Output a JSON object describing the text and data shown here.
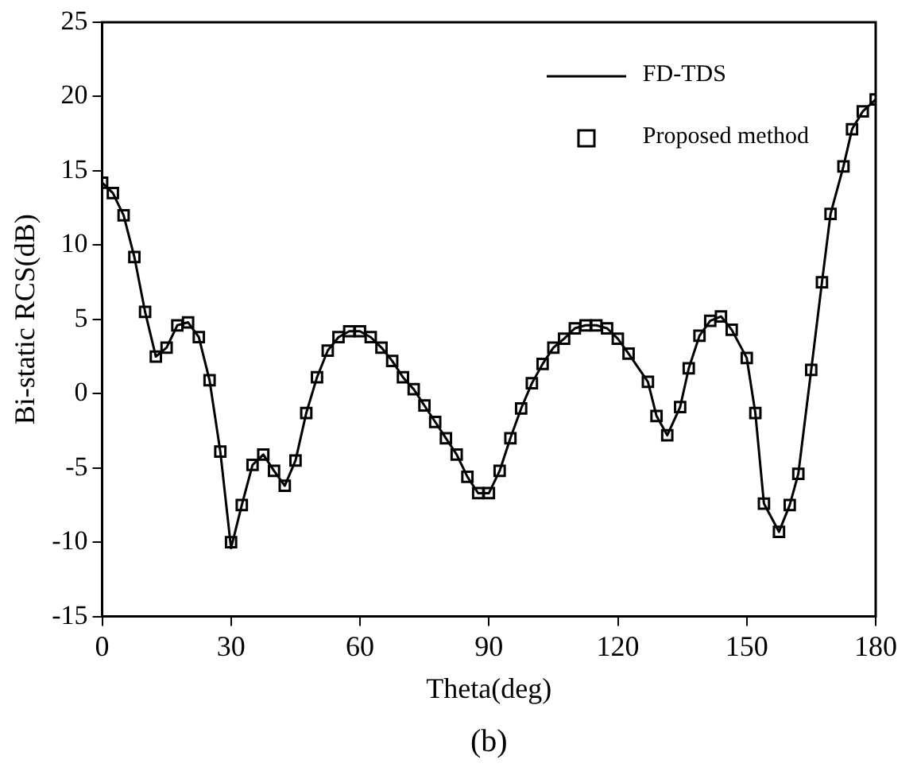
{
  "chart_data": {
    "type": "line",
    "xlabel": "Theta(deg)",
    "ylabel": "Bi-static RCS(dB)",
    "annotations": [
      "(b)"
    ],
    "xlim": [
      0,
      180
    ],
    "xticks": [
      0,
      30,
      60,
      90,
      120,
      150,
      180
    ],
    "ylim": [
      -15,
      25
    ],
    "yticks": [
      -15,
      -10,
      -5,
      0,
      5,
      10,
      15,
      20,
      25
    ],
    "grid": false,
    "legend": "top right",
    "series": [
      {
        "name": "FD-TDS",
        "type": "line",
        "color": "#000000",
        "marker": "none",
        "line_style": "solid",
        "x": [
          0,
          2.5,
          5,
          7.5,
          10,
          12.5,
          15,
          17.5,
          20,
          22.5,
          25,
          27.5,
          30,
          32.5,
          35,
          37.5,
          40,
          42.5,
          45,
          47.5,
          50,
          52.5,
          55,
          57.5,
          60,
          62.5,
          65,
          67.5,
          70,
          72.5,
          75,
          77.5,
          80,
          82.5,
          85,
          87.5,
          90,
          92.5,
          95,
          97.5,
          100,
          102.5,
          105,
          107.5,
          110,
          112.5,
          115,
          117.5,
          120,
          122.5,
          127,
          129,
          131.5,
          134.5,
          136.5,
          139,
          141.5,
          144,
          146.5,
          150,
          152,
          154,
          157.5,
          160,
          162,
          165,
          167.5,
          169.5,
          172.5,
          174.5,
          177,
          180
        ],
        "values": [
          14.2,
          13.5,
          12.0,
          9.2,
          5.5,
          2.5,
          3.1,
          4.6,
          4.8,
          3.8,
          0.9,
          -3.9,
          -10.4,
          -7.5,
          -4.8,
          -4.1,
          -5.2,
          -6.2,
          -4.5,
          -1.3,
          1.1,
          2.9,
          3.8,
          4.2,
          4.2,
          3.8,
          3.1,
          2.2,
          1.1,
          0.3,
          -0.8,
          -1.9,
          -3.0,
          -4.1,
          -5.6,
          -6.7,
          -6.7,
          -5.2,
          -3.0,
          -1.0,
          0.7,
          2.0,
          3.1,
          3.7,
          4.4,
          4.6,
          4.6,
          4.4,
          3.7,
          2.7,
          0.8,
          -1.5,
          -2.8,
          -0.9,
          1.7,
          3.9,
          4.9,
          5.2,
          4.3,
          2.4,
          -1.3,
          -7.4,
          -9.3,
          -7.5,
          -5.4,
          1.6,
          7.5,
          12.1,
          15.3,
          17.8,
          19.0,
          19.8
        ]
      },
      {
        "name": "Proposed method",
        "type": "scatter",
        "color": "#000000",
        "marker": "square",
        "x": [
          0,
          2.5,
          5,
          7.5,
          10,
          12.5,
          15,
          17.5,
          20,
          22.5,
          25,
          27.5,
          30,
          32.5,
          35,
          37.5,
          40,
          42.5,
          45,
          47.5,
          50,
          52.5,
          55,
          57.5,
          60,
          62.5,
          65,
          67.5,
          70,
          72.5,
          75,
          77.5,
          80,
          82.5,
          85,
          87.5,
          90,
          92.5,
          95,
          97.5,
          100,
          102.5,
          105,
          107.5,
          110,
          112.5,
          115,
          117.5,
          120,
          122.5,
          127,
          129,
          131.5,
          134.5,
          136.5,
          139,
          141.5,
          144,
          146.5,
          150,
          152,
          154,
          157.5,
          160,
          162,
          165,
          167.5,
          169.5,
          172.5,
          174.5,
          177,
          180
        ],
        "values": [
          14.2,
          13.5,
          12.0,
          9.2,
          5.5,
          2.5,
          3.1,
          4.6,
          4.8,
          3.8,
          0.9,
          -3.9,
          -10.0,
          -7.5,
          -4.8,
          -4.1,
          -5.2,
          -6.2,
          -4.5,
          -1.3,
          1.1,
          2.9,
          3.8,
          4.2,
          4.2,
          3.8,
          3.1,
          2.2,
          1.1,
          0.3,
          -0.8,
          -1.9,
          -3.0,
          -4.1,
          -5.6,
          -6.7,
          -6.7,
          -5.2,
          -3.0,
          -1.0,
          0.7,
          2.0,
          3.1,
          3.7,
          4.4,
          4.6,
          4.6,
          4.4,
          3.7,
          2.7,
          0.8,
          -1.5,
          -2.8,
          -0.9,
          1.7,
          3.9,
          4.9,
          5.2,
          4.3,
          2.4,
          -1.3,
          -7.4,
          -9.3,
          -7.5,
          -5.4,
          1.6,
          7.5,
          12.1,
          15.3,
          17.8,
          19.0,
          19.8
        ]
      }
    ]
  }
}
